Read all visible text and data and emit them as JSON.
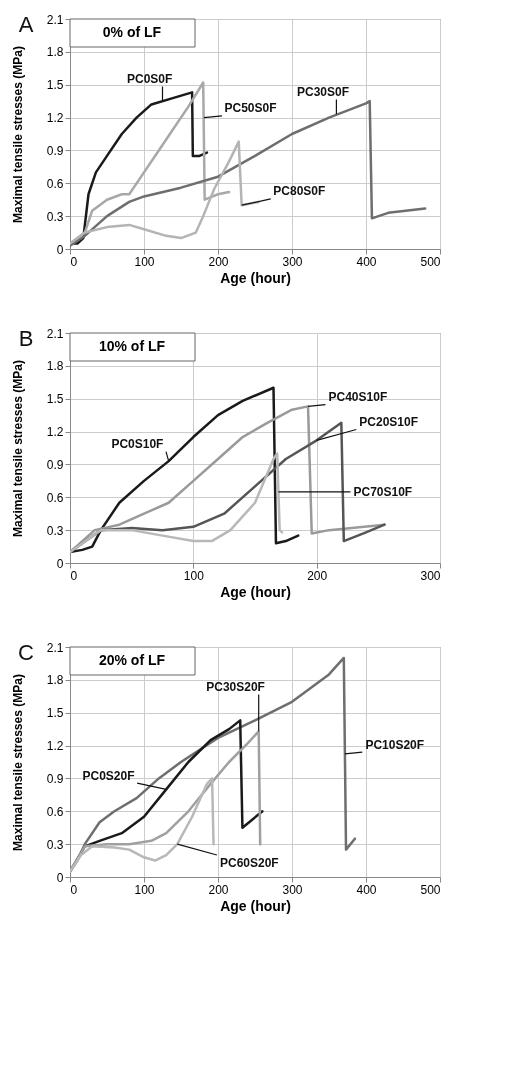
{
  "chart_data": [
    {
      "type": "line",
      "title": "0% of LF",
      "xlabel": "Age (hour)",
      "ylabel": "Maximal tensile stresses (MPa)",
      "xlim": [
        0,
        500
      ],
      "xticks": [
        0,
        100,
        200,
        300,
        400,
        500
      ],
      "ylim": [
        0,
        2.1
      ],
      "yticks": [
        0,
        0.3,
        0.6,
        0.9,
        1.2,
        1.5,
        1.8,
        2.1
      ],
      "grid": true,
      "annotations": [
        "A",
        {
          "text": "PC0S0F",
          "x": 125,
          "y": 1.35
        },
        {
          "text": "PC50S0F",
          "x": 181,
          "y": 1.2
        },
        {
          "text": "PC30S0F",
          "x": 360,
          "y": 1.23
        },
        {
          "text": "PC80S0F",
          "x": 232,
          "y": 0.4
        }
      ],
      "series": [
        {
          "color": "#1a1a1a",
          "x": [
            0,
            10,
            18,
            25,
            35,
            50,
            70,
            90,
            110,
            140,
            165,
            166,
            175,
            185
          ],
          "values": [
            0.05,
            0.05,
            0.1,
            0.5,
            0.7,
            0.85,
            1.05,
            1.2,
            1.32,
            1.38,
            1.43,
            0.85,
            0.85,
            0.88
          ]
        },
        {
          "color": "#a8a8a8",
          "x": [
            0,
            20,
            30,
            50,
            70,
            80,
            100,
            120,
            140,
            160,
            180,
            182,
            200,
            215
          ],
          "values": [
            0.05,
            0.15,
            0.35,
            0.45,
            0.5,
            0.5,
            0.7,
            0.9,
            1.1,
            1.3,
            1.52,
            0.45,
            0.5,
            0.52
          ]
        },
        {
          "color": "#6e6e6e",
          "x": [
            0,
            20,
            50,
            80,
            100,
            150,
            200,
            250,
            300,
            350,
            400,
            405,
            408,
            430,
            480
          ],
          "values": [
            0.03,
            0.12,
            0.3,
            0.43,
            0.48,
            0.56,
            0.66,
            0.85,
            1.05,
            1.2,
            1.33,
            1.35,
            0.28,
            0.33,
            0.37
          ]
        },
        {
          "color": "#b4b4b4",
          "x": [
            0,
            20,
            50,
            80,
            100,
            130,
            150,
            170,
            180,
            195,
            215,
            228,
            232,
            255
          ],
          "values": [
            0.05,
            0.15,
            0.2,
            0.22,
            0.18,
            0.12,
            0.1,
            0.15,
            0.3,
            0.55,
            0.8,
            0.98,
            0.4,
            0.43
          ]
        }
      ]
    },
    {
      "type": "line",
      "title": "10% of LF",
      "xlabel": "Age (hour)",
      "ylabel": "Maximal tensile stresses (MPa)",
      "xlim": [
        0,
        300
      ],
      "xticks": [
        0,
        100,
        200,
        300
      ],
      "ylim": [
        0,
        2.1
      ],
      "yticks": [
        0,
        0.3,
        0.6,
        0.9,
        1.2,
        1.5,
        1.8,
        2.1
      ],
      "grid": true,
      "annotations": [
        "B",
        {
          "text": "PC0S10F",
          "x": 80,
          "y": 0.93
        },
        {
          "text": "PC40S10F",
          "x": 193,
          "y": 1.43
        },
        {
          "text": "PC20S10F",
          "x": 200,
          "y": 1.12
        },
        {
          "text": "PC70S10F",
          "x": 169,
          "y": 0.65
        }
      ],
      "series": [
        {
          "color": "#1a1a1a",
          "x": [
            0,
            10,
            18,
            25,
            40,
            60,
            80,
            100,
            120,
            140,
            165,
            167,
            175,
            185
          ],
          "values": [
            0.1,
            0.12,
            0.15,
            0.3,
            0.55,
            0.75,
            0.93,
            1.15,
            1.35,
            1.48,
            1.6,
            0.18,
            0.2,
            0.25
          ]
        },
        {
          "color": "#9a9a9a",
          "x": [
            0,
            20,
            40,
            60,
            80,
            100,
            120,
            140,
            160,
            180,
            193,
            196,
            210,
            255
          ],
          "values": [
            0.1,
            0.3,
            0.35,
            0.45,
            0.55,
            0.75,
            0.95,
            1.15,
            1.28,
            1.4,
            1.43,
            0.27,
            0.3,
            0.35
          ]
        },
        {
          "color": "#555555",
          "x": [
            0,
            25,
            50,
            75,
            100,
            125,
            150,
            175,
            200,
            220,
            222,
            240,
            255
          ],
          "values": [
            0.1,
            0.3,
            0.32,
            0.3,
            0.33,
            0.45,
            0.7,
            0.95,
            1.12,
            1.28,
            0.2,
            0.28,
            0.35
          ]
        },
        {
          "color": "#b8b8b8",
          "x": [
            0,
            25,
            50,
            75,
            100,
            115,
            130,
            150,
            165,
            168,
            170,
            172
          ],
          "values": [
            0.1,
            0.3,
            0.3,
            0.25,
            0.2,
            0.2,
            0.3,
            0.55,
            0.95,
            1.0,
            0.3,
            0.28
          ]
        }
      ]
    },
    {
      "type": "line",
      "title": "20% of LF",
      "xlabel": "Age (hour)",
      "ylabel": "Maximal tensile stresses (MPa)",
      "xlim": [
        0,
        500
      ],
      "xticks": [
        0,
        100,
        200,
        300,
        400,
        500
      ],
      "ylim": [
        0,
        2.1
      ],
      "yticks": [
        0,
        0.3,
        0.6,
        0.9,
        1.2,
        1.5,
        1.8,
        2.1
      ],
      "grid": true,
      "annotations": [
        "C",
        {
          "text": "PC0S20F",
          "x": 130,
          "y": 0.8
        },
        {
          "text": "PC30S20F",
          "x": 255,
          "y": 1.33
        },
        {
          "text": "PC10S20F",
          "x": 371.5,
          "y": 1.125
        },
        {
          "text": "PC60S20F",
          "x": 145,
          "y": 0.3
        }
      ],
      "series": [
        {
          "color": "#6e6e6e",
          "x": [
            0,
            10,
            20,
            40,
            60,
            90,
            120,
            150,
            200,
            250,
            300,
            350,
            370,
            373,
            385
          ],
          "values": [
            0.05,
            0.15,
            0.3,
            0.5,
            0.6,
            0.72,
            0.9,
            1.05,
            1.27,
            1.43,
            1.6,
            1.85,
            2.0,
            0.25,
            0.35
          ]
        },
        {
          "color": "#1a1a1a",
          "x": [
            0,
            20,
            40,
            70,
            100,
            130,
            160,
            190,
            215,
            230,
            233,
            260
          ],
          "values": [
            0.05,
            0.28,
            0.33,
            0.4,
            0.55,
            0.8,
            1.05,
            1.25,
            1.35,
            1.43,
            0.45,
            0.6
          ]
        },
        {
          "color": "#a0a0a0",
          "x": [
            0,
            20,
            50,
            80,
            110,
            130,
            160,
            190,
            215,
            240,
            255,
            257
          ],
          "values": [
            0.05,
            0.28,
            0.3,
            0.3,
            0.33,
            0.4,
            0.6,
            0.85,
            1.05,
            1.22,
            1.33,
            0.3
          ]
        },
        {
          "color": "#b8b8b8",
          "x": [
            0,
            15,
            30,
            60,
            80,
            100,
            115,
            130,
            145,
            165,
            185,
            192,
            194
          ],
          "values": [
            0.05,
            0.2,
            0.28,
            0.27,
            0.25,
            0.18,
            0.15,
            0.2,
            0.3,
            0.55,
            0.85,
            0.9,
            0.3
          ]
        }
      ]
    }
  ]
}
